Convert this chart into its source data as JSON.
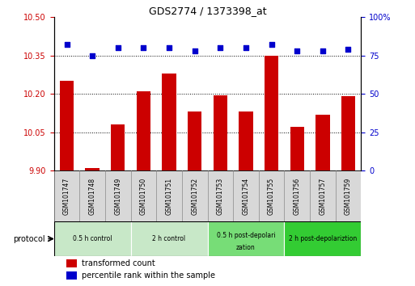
{
  "title": "GDS2774 / 1373398_at",
  "categories": [
    "GSM101747",
    "GSM101748",
    "GSM101749",
    "GSM101750",
    "GSM101751",
    "GSM101752",
    "GSM101753",
    "GSM101754",
    "GSM101755",
    "GSM101756",
    "GSM101757",
    "GSM101759"
  ],
  "bar_values": [
    10.25,
    9.91,
    10.08,
    10.21,
    10.28,
    10.13,
    10.195,
    10.13,
    10.35,
    10.07,
    10.12,
    10.19
  ],
  "dot_values": [
    82,
    75,
    80,
    80,
    80,
    78,
    80,
    80,
    82,
    78,
    78,
    79
  ],
  "ylim_left": [
    9.9,
    10.5
  ],
  "ylim_right": [
    0,
    100
  ],
  "yticks_left": [
    9.9,
    10.05,
    10.2,
    10.35,
    10.5
  ],
  "yticks_right": [
    0,
    25,
    50,
    75,
    100
  ],
  "ytick_labels_right": [
    "0",
    "25",
    "50",
    "75",
    "100%"
  ],
  "bar_color": "#cc0000",
  "dot_color": "#0000cc",
  "grid_values": [
    10.05,
    10.2,
    10.35
  ],
  "protocol_groups": [
    {
      "label": "0.5 h control",
      "start": 0,
      "end": 3
    },
    {
      "label": "2 h control",
      "start": 3,
      "end": 6
    },
    {
      "label": "0.5 h post-depolarization",
      "start": 6,
      "end": 9
    },
    {
      "label": "2 h post-depolariztion",
      "start": 9,
      "end": 12
    }
  ],
  "proto_colors": [
    "#c8e8c8",
    "#c8e8c8",
    "#77dd77",
    "#33cc33"
  ],
  "legend_bar_label": "transformed count",
  "legend_dot_label": "percentile rank within the sample",
  "protocol_label": "protocol",
  "tick_label_color_left": "#cc0000",
  "tick_label_color_right": "#0000cc",
  "xtick_bg_color": "#d8d8d8",
  "plot_border_color": "#000000"
}
